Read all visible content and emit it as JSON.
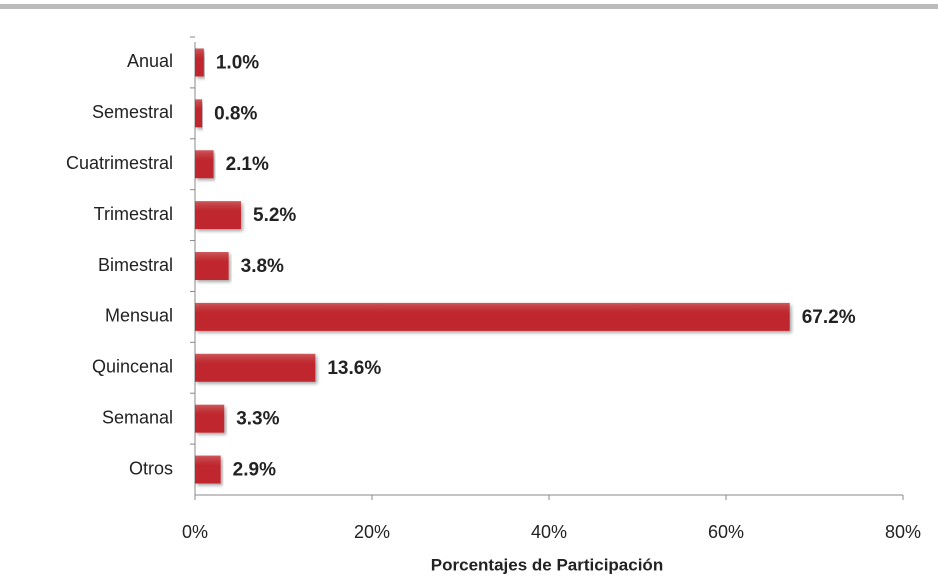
{
  "chart_data": {
    "type": "hbar",
    "x_label": "Porcentajes de Participación",
    "categories": [
      "Anual",
      "Semestral",
      "Cuatrimestral",
      "Trimestral",
      "Bimestral",
      "Mensual",
      "Quincenal",
      "Semanal",
      "Otros"
    ],
    "values": [
      1.0,
      0.8,
      2.1,
      5.2,
      3.8,
      67.2,
      13.6,
      3.3,
      2.9
    ],
    "value_labels": [
      "1.0%",
      "0.8%",
      "2.1%",
      "5.2%",
      "3.8%",
      "67.2%",
      "13.6%",
      "3.3%",
      "2.9%"
    ],
    "color": "#c0282d",
    "xlim": [
      0,
      80
    ],
    "xticks": [
      {
        "value": 0,
        "label": "0%"
      },
      {
        "value": 20,
        "label": "20%"
      },
      {
        "value": 40,
        "label": "40%"
      },
      {
        "value": 60,
        "label": "60%"
      },
      {
        "value": 80,
        "label": "80%"
      }
    ],
    "grid": false
  }
}
